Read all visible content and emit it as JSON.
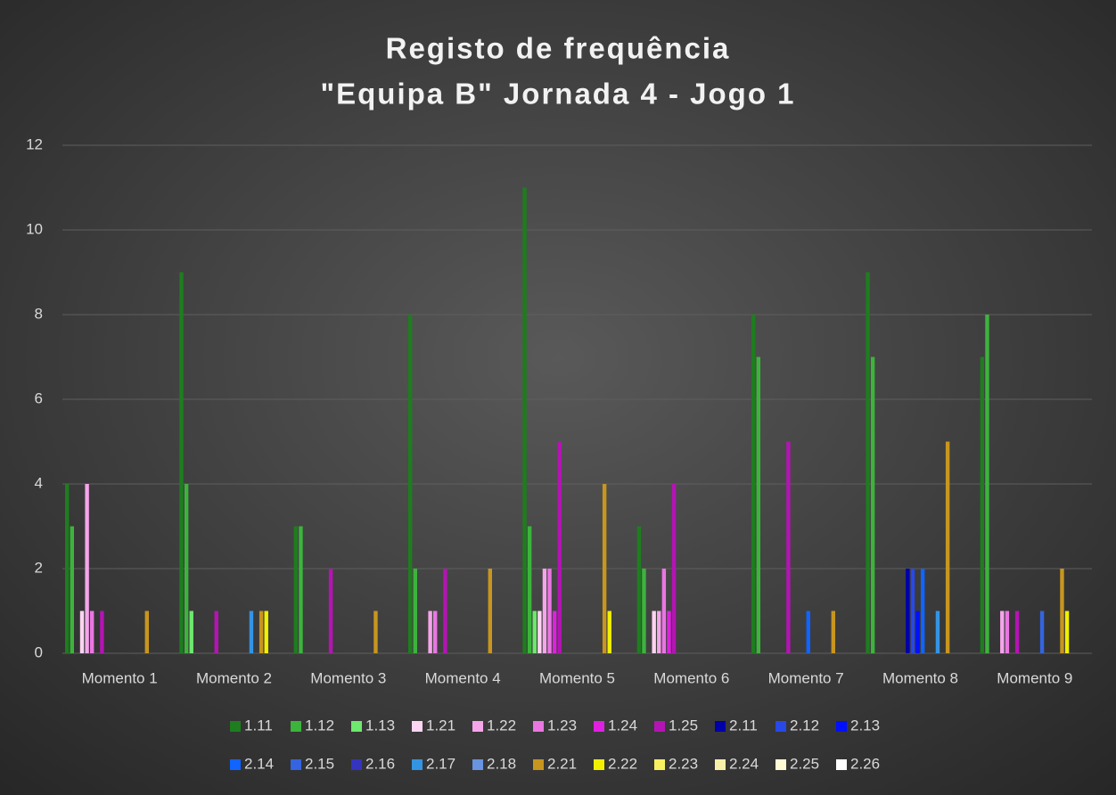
{
  "chart_data": {
    "type": "bar",
    "title": [
      "Registo de frequência",
      "\"Equipa B\" Jornada 4 - Jogo 1"
    ],
    "categories": [
      "Momento 1",
      "Momento 2",
      "Momento 3",
      "Momento 4",
      "Momento 5",
      "Momento 6",
      "Momento 7",
      "Momento 8",
      "Momento 9"
    ],
    "ylim": [
      0,
      12
    ],
    "yticks": [
      0,
      2,
      4,
      6,
      8,
      10,
      12
    ],
    "grid": true,
    "legend": "bottom",
    "series": [
      {
        "name": "1.11",
        "color": "#1e7d1e",
        "values": [
          4,
          9,
          3,
          8,
          11,
          3,
          8,
          9,
          7
        ]
      },
      {
        "name": "1.12",
        "color": "#3cb43c",
        "values": [
          3,
          4,
          3,
          2,
          3,
          2,
          7,
          7,
          8
        ]
      },
      {
        "name": "1.13",
        "color": "#6ee86e",
        "values": [
          null,
          1,
          null,
          null,
          1,
          null,
          null,
          null,
          null
        ]
      },
      {
        "name": "1.21",
        "color": "#ffd4f2",
        "values": [
          1,
          null,
          null,
          null,
          1,
          1,
          null,
          null,
          null
        ]
      },
      {
        "name": "1.22",
        "color": "#f5a5ea",
        "values": [
          4,
          null,
          null,
          1,
          2,
          1,
          null,
          null,
          1
        ]
      },
      {
        "name": "1.23",
        "color": "#ea76e2",
        "values": [
          1,
          null,
          null,
          1,
          2,
          2,
          null,
          null,
          1
        ]
      },
      {
        "name": "1.24",
        "color": "#e020e0",
        "values": [
          null,
          null,
          null,
          null,
          1,
          1,
          null,
          null,
          null
        ]
      },
      {
        "name": "1.25",
        "color": "#b414b4",
        "values": [
          1,
          1,
          2,
          2,
          5,
          4,
          5,
          null,
          1
        ]
      },
      {
        "name": "2.11",
        "color": "#0000a8",
        "values": [
          null,
          null,
          null,
          null,
          null,
          null,
          null,
          2,
          null
        ]
      },
      {
        "name": "2.12",
        "color": "#2848e8",
        "values": [
          null,
          null,
          null,
          null,
          null,
          null,
          null,
          2,
          null
        ]
      },
      {
        "name": "2.13",
        "color": "#0010ff",
        "values": [
          null,
          null,
          null,
          null,
          null,
          null,
          null,
          1,
          null
        ]
      },
      {
        "name": "2.14",
        "color": "#1064ff",
        "values": [
          null,
          null,
          null,
          null,
          null,
          null,
          1,
          2,
          null
        ]
      },
      {
        "name": "2.15",
        "color": "#3464e0",
        "values": [
          null,
          null,
          null,
          null,
          null,
          null,
          null,
          null,
          1
        ]
      },
      {
        "name": "2.16",
        "color": "#3434c0",
        "values": [
          null,
          null,
          null,
          null,
          null,
          null,
          null,
          null,
          null
        ]
      },
      {
        "name": "2.17",
        "color": "#3494e4",
        "values": [
          null,
          1,
          null,
          null,
          null,
          null,
          null,
          1,
          null
        ]
      },
      {
        "name": "2.18",
        "color": "#6894e0",
        "values": [
          null,
          null,
          null,
          null,
          null,
          null,
          null,
          null,
          null
        ]
      },
      {
        "name": "2.21",
        "color": "#c8961e",
        "values": [
          1,
          1,
          1,
          2,
          4,
          null,
          1,
          5,
          2
        ]
      },
      {
        "name": "2.22",
        "color": "#f0f000",
        "values": [
          null,
          1,
          null,
          null,
          1,
          null,
          null,
          null,
          1
        ]
      },
      {
        "name": "2.23",
        "color": "#f8f060",
        "values": [
          null,
          null,
          null,
          null,
          null,
          null,
          null,
          null,
          null
        ]
      },
      {
        "name": "2.24",
        "color": "#f8f0a8",
        "values": [
          null,
          null,
          null,
          null,
          null,
          null,
          null,
          null,
          null
        ]
      },
      {
        "name": "2.25",
        "color": "#fffad4",
        "values": [
          null,
          null,
          null,
          null,
          null,
          null,
          null,
          null,
          null
        ]
      },
      {
        "name": "2.26",
        "color": "#ffffff",
        "values": [
          null,
          null,
          null,
          null,
          null,
          null,
          null,
          null,
          null
        ]
      }
    ]
  }
}
